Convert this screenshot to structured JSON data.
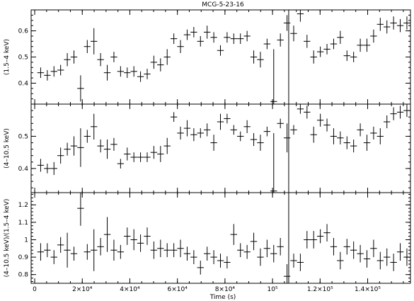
{
  "chart_data": {
    "type": "scatter",
    "title": "MCG-5-23-16",
    "xlabel": "Time (s)",
    "xlim": [
      -1500,
      158000
    ],
    "x_ticks": [
      {
        "value": 0,
        "label": "0"
      },
      {
        "value": 20000,
        "label": "2×10⁴"
      },
      {
        "value": 40000,
        "label": "4×10⁴"
      },
      {
        "value": 60000,
        "label": "6×10⁴"
      },
      {
        "value": 80000,
        "label": "8×10⁴"
      },
      {
        "value": 100000,
        "label": "10⁵"
      },
      {
        "value": 120000,
        "label": "1.2×10⁵"
      },
      {
        "value": 140000,
        "label": "1.4×10⁵"
      }
    ],
    "x_minor_step": 5000,
    "x": [
      2500,
      5300,
      8100,
      10900,
      13700,
      16500,
      19300,
      22100,
      24900,
      27700,
      30500,
      33300,
      36100,
      38900,
      41700,
      44500,
      47300,
      50100,
      52900,
      55700,
      58500,
      61300,
      64100,
      66900,
      69700,
      72500,
      75300,
      78100,
      80900,
      83700,
      86500,
      89300,
      92100,
      94900,
      97700,
      100500,
      103300,
      106100,
      108900,
      111700,
      114500,
      117300,
      120100,
      122900,
      125700,
      128500,
      131300,
      134100,
      136900,
      139700,
      142500,
      145300,
      148100,
      150900,
      153700,
      156500
    ],
    "xerr": 1400,
    "gap_x": 106800,
    "panels": [
      {
        "ylabel": "(1.5–4 keV)",
        "ylim": [
          0.32,
          0.68
        ],
        "y_ticks": [
          0.4,
          0.5,
          0.6
        ],
        "y_tick_labels": [
          "0.4",
          "0.5",
          "0.6"
        ],
        "y_minor_step": 0.02,
        "values": [
          0.44,
          0.43,
          0.445,
          0.45,
          0.49,
          0.5,
          0.38,
          0.54,
          0.56,
          0.49,
          0.44,
          0.5,
          0.445,
          0.44,
          0.445,
          0.425,
          0.435,
          0.48,
          0.47,
          0.5,
          0.57,
          0.54,
          0.585,
          0.595,
          0.56,
          0.595,
          0.575,
          0.525,
          0.575,
          0.57,
          0.57,
          0.58,
          0.5,
          0.49,
          0.55,
          0.33,
          0.565,
          0.63,
          0.59,
          0.665,
          0.56,
          0.5,
          0.52,
          0.53,
          0.55,
          0.575,
          0.505,
          0.5,
          0.545,
          0.545,
          0.58,
          0.625,
          0.615,
          0.63,
          0.62,
          0.63
        ],
        "errors": [
          0.02,
          0.02,
          0.02,
          0.02,
          0.025,
          0.025,
          0.05,
          0.025,
          0.05,
          0.025,
          0.03,
          0.02,
          0.02,
          0.02,
          0.02,
          0.02,
          0.02,
          0.025,
          0.025,
          0.03,
          0.02,
          0.025,
          0.02,
          0.02,
          0.02,
          0.025,
          0.02,
          0.02,
          0.02,
          0.02,
          0.02,
          0.02,
          0.025,
          0.03,
          0.02,
          0.2,
          0.025,
          0.03,
          0.03,
          0.03,
          0.025,
          0.025,
          0.02,
          0.02,
          0.02,
          0.025,
          0.02,
          0.02,
          0.025,
          0.025,
          0.025,
          0.025,
          0.025,
          0.025,
          0.025,
          0.025
        ]
      },
      {
        "ylabel": "(4–10.5 keV)",
        "ylim": [
          0.325,
          0.6
        ],
        "y_ticks": [
          0.4,
          0.5
        ],
        "y_tick_labels": [
          "0.4",
          "0.5"
        ],
        "y_minor_step": 0.02,
        "values": [
          0.41,
          0.4,
          0.4,
          0.44,
          0.46,
          0.47,
          0.465,
          0.5,
          0.53,
          0.47,
          0.46,
          0.475,
          0.415,
          0.445,
          0.435,
          0.435,
          0.435,
          0.45,
          0.445,
          0.47,
          0.56,
          0.51,
          0.525,
          0.505,
          0.51,
          0.52,
          0.48,
          0.545,
          0.555,
          0.52,
          0.5,
          0.53,
          0.49,
          0.48,
          0.515,
          0.33,
          0.54,
          0.495,
          0.52,
          0.585,
          0.575,
          0.505,
          0.55,
          0.535,
          0.5,
          0.495,
          0.48,
          0.47,
          0.52,
          0.48,
          0.51,
          0.5,
          0.545,
          0.57,
          0.575,
          0.58
        ],
        "errors": [
          0.02,
          0.015,
          0.02,
          0.025,
          0.02,
          0.03,
          0.06,
          0.02,
          0.04,
          0.02,
          0.03,
          0.02,
          0.015,
          0.02,
          0.015,
          0.015,
          0.015,
          0.02,
          0.025,
          0.025,
          0.015,
          0.02,
          0.025,
          0.02,
          0.015,
          0.02,
          0.025,
          0.025,
          0.015,
          0.015,
          0.015,
          0.02,
          0.02,
          0.025,
          0.015,
          0.18,
          0.015,
          0.045,
          0.015,
          0.015,
          0.02,
          0.025,
          0.02,
          0.02,
          0.025,
          0.02,
          0.02,
          0.02,
          0.02,
          0.025,
          0.02,
          0.025,
          0.02,
          0.02,
          0.02,
          0.02
        ]
      },
      {
        "ylabel": "(4–10.5 keV)/(1.5–4 keV)",
        "ylim": [
          0.75,
          1.27
        ],
        "y_ticks": [
          0.8,
          0.9,
          1.0,
          1.1,
          1.2
        ],
        "y_tick_labels": [
          "0.8",
          "0.9",
          "1",
          "1.1",
          "1.2"
        ],
        "y_minor_step": 0.02,
        "values": [
          0.93,
          0.94,
          0.9,
          0.97,
          0.94,
          0.92,
          1.18,
          0.93,
          0.94,
          0.96,
          1.03,
          0.94,
          0.93,
          1.02,
          1.0,
          0.98,
          1.02,
          0.94,
          0.95,
          0.94,
          0.94,
          0.95,
          0.92,
          0.9,
          0.84,
          0.92,
          0.9,
          0.88,
          0.87,
          1.03,
          0.94,
          0.93,
          0.99,
          0.9,
          0.95,
          0.92,
          0.96,
          0.79,
          0.88,
          0.87,
          1.0,
          1.0,
          1.02,
          1.04,
          0.96,
          0.88,
          0.96,
          0.94,
          0.92,
          0.89,
          0.95,
          0.88,
          0.9,
          0.87,
          0.93,
          0.9
        ],
        "errors": [
          0.05,
          0.04,
          0.04,
          0.045,
          0.1,
          0.04,
          0.1,
          0.045,
          0.12,
          0.05,
          0.1,
          0.06,
          0.04,
          0.05,
          0.06,
          0.05,
          0.05,
          0.05,
          0.05,
          0.04,
          0.04,
          0.05,
          0.04,
          0.04,
          0.04,
          0.04,
          0.04,
          0.04,
          0.035,
          0.06,
          0.04,
          0.04,
          0.05,
          0.05,
          0.05,
          0.05,
          0.05,
          0.07,
          0.04,
          0.05,
          0.05,
          0.05,
          0.04,
          0.05,
          0.05,
          0.05,
          0.045,
          0.05,
          0.05,
          0.05,
          0.05,
          0.05,
          0.05,
          0.05,
          0.05,
          0.05
        ]
      }
    ]
  }
}
